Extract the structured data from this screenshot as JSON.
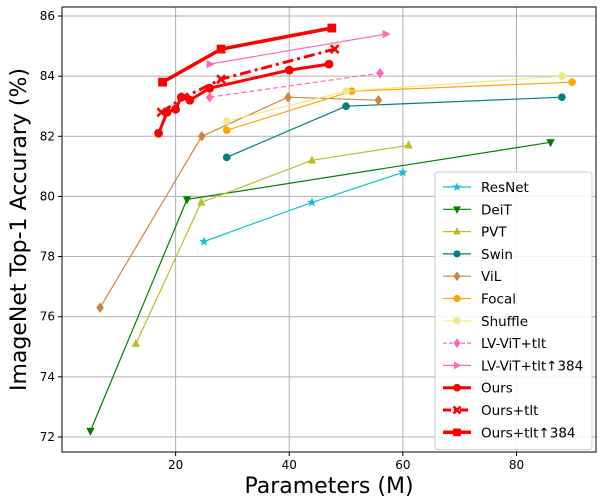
{
  "chart_data": {
    "type": "line",
    "xlabel": "Parameters (M)",
    "ylabel": "ImageNet Top-1 Accurary (%)",
    "xlim": [
      0,
      94
    ],
    "ylim": [
      71.5,
      86.3
    ],
    "xticks": [
      20,
      40,
      60,
      80
    ],
    "yticks": [
      72,
      74,
      76,
      78,
      80,
      82,
      84,
      86
    ],
    "xtick_labels": [
      "20",
      "40",
      "60",
      "80"
    ],
    "ytick_labels": [
      "72",
      "74",
      "76",
      "78",
      "80",
      "82",
      "84",
      "86"
    ],
    "grid": true,
    "legend_position": "lower-right",
    "series": [
      {
        "name": "ResNet",
        "color": "#17becf",
        "marker": "star",
        "style": "solid",
        "width": 1.2,
        "points": [
          [
            25,
            78.5
          ],
          [
            44,
            79.8
          ],
          [
            60,
            80.8
          ]
        ]
      },
      {
        "name": "DeiT",
        "color": "#008000",
        "marker": "triangle-down",
        "style": "solid",
        "width": 1.2,
        "points": [
          [
            5,
            72.2
          ],
          [
            22,
            79.9
          ],
          [
            86,
            81.8
          ]
        ]
      },
      {
        "name": "PVT",
        "color": "#bcbd22",
        "marker": "triangle-up",
        "style": "solid",
        "width": 1.2,
        "points": [
          [
            13,
            75.1
          ],
          [
            24.5,
            79.8
          ],
          [
            44,
            81.2
          ],
          [
            61,
            81.7
          ]
        ]
      },
      {
        "name": "Swin",
        "color": "#008080",
        "marker": "circle",
        "style": "solid",
        "width": 1.2,
        "points": [
          [
            29,
            81.3
          ],
          [
            50,
            83.0
          ],
          [
            88,
            83.3
          ]
        ]
      },
      {
        "name": "ViL",
        "color": "#cd853f",
        "marker": "diamond",
        "style": "solid",
        "width": 1.2,
        "points": [
          [
            6.7,
            76.3
          ],
          [
            24.6,
            82.0
          ],
          [
            39.8,
            83.3
          ],
          [
            55.7,
            83.2
          ]
        ]
      },
      {
        "name": "Focal",
        "color": "#ffa500",
        "marker": "circle",
        "style": "solid",
        "width": 1.2,
        "points": [
          [
            29,
            82.2
          ],
          [
            51,
            83.5
          ],
          [
            89.8,
            83.8
          ]
        ]
      },
      {
        "name": "Shuffle",
        "color": "#f0e68c",
        "marker": "circle",
        "style": "solid",
        "width": 1.2,
        "points": [
          [
            29,
            82.5
          ],
          [
            50,
            83.5
          ],
          [
            88,
            84.0
          ]
        ]
      },
      {
        "name": "LV-ViT+tlt",
        "color": "#ff69b4",
        "marker": "diamond",
        "style": "dashed",
        "width": 1.2,
        "points": [
          [
            26,
            83.3
          ],
          [
            56,
            84.1
          ]
        ]
      },
      {
        "name": "LV-ViT+tlt↑384",
        "color": "#ff69b4",
        "marker": "triangle-right",
        "style": "solid",
        "width": 1.2,
        "points": [
          [
            26,
            84.4
          ],
          [
            57,
            85.4
          ]
        ]
      },
      {
        "name": "Ours",
        "color": "#ff0000",
        "marker": "circle",
        "style": "solid",
        "width": 3,
        "points": [
          [
            17,
            82.1
          ],
          [
            18.5,
            82.8
          ],
          [
            20,
            82.9
          ],
          [
            21,
            83.3
          ],
          [
            22.5,
            83.2
          ],
          [
            26,
            83.6
          ],
          [
            40,
            84.2
          ],
          [
            47,
            84.4
          ]
        ]
      },
      {
        "name": "Ours+tlt",
        "color": "#ff0000",
        "marker": "x",
        "style": "dashdot",
        "width": 3,
        "points": [
          [
            17.5,
            82.8
          ],
          [
            21.5,
            83.3
          ],
          [
            28,
            83.9
          ],
          [
            48,
            84.9
          ]
        ]
      },
      {
        "name": "Ours+tlt↑384",
        "color": "#ff0000",
        "marker": "square",
        "style": "solid",
        "width": 3.5,
        "points": [
          [
            17.7,
            83.8
          ],
          [
            28,
            84.9
          ],
          [
            47.5,
            85.6
          ]
        ]
      }
    ]
  }
}
